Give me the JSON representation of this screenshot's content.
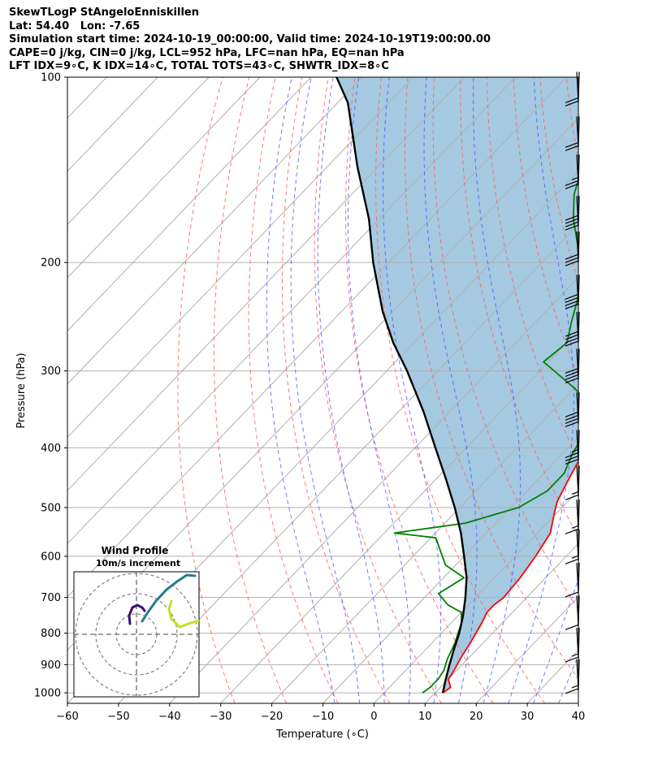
{
  "header": {
    "lines": [
      "SkewTLogP StAngeloEnniskillen",
      "Lat: 54.40   Lon: -7.65",
      "Simulation start time: 2024-10-19_00:00:00, Valid time: 2024-10-19T19:00:00.00",
      "CAPE=0 j/kg, CIN=0 j/kg, LCL=952 hPa, LFC=nan hPa, EQ=nan hPa",
      "LFT IDX=9∘C, K IDX=14∘C, TOTAL TOTS=43∘C, SHWTR_IDX=8∘C"
    ]
  },
  "chart_data": {
    "type": "line",
    "subtype": "skew-T log-P",
    "xlabel": "Temperature (∘C)",
    "ylabel": "Pressure (hPa)",
    "xlim": [
      -60,
      40
    ],
    "ylim": [
      1040,
      100
    ],
    "x_ticks": [
      -60,
      -50,
      -40,
      -30,
      -20,
      -10,
      0,
      10,
      20,
      30,
      40
    ],
    "x_tick_labels": [
      "−60",
      "−50",
      "−40",
      "−30",
      "−20",
      "−10",
      "0",
      "10",
      "20",
      "30",
      "40"
    ],
    "y_ticks": [
      100,
      200,
      300,
      400,
      500,
      600,
      700,
      800,
      900,
      1000
    ],
    "y_tick_labels": [
      "100",
      "200",
      "300",
      "400",
      "500",
      "600",
      "700",
      "800",
      "900",
      "1000"
    ],
    "grid": true,
    "y_scale": "log",
    "series": [
      {
        "role": "temperature",
        "color": "#ff0000",
        "points": [
          [
            11.5,
            1000
          ],
          [
            12,
            980
          ],
          [
            10,
            950
          ],
          [
            9.5,
            920
          ],
          [
            8.5,
            880
          ],
          [
            7.5,
            830
          ],
          [
            6,
            770
          ],
          [
            5,
            740
          ],
          [
            5,
            720
          ],
          [
            5.5,
            700
          ],
          [
            5,
            650
          ],
          [
            4,
            600
          ],
          [
            2.5,
            550
          ],
          [
            -0.5,
            510
          ],
          [
            -2,
            490
          ],
          [
            -3,
            470
          ],
          [
            -4,
            450
          ],
          [
            -5,
            430
          ],
          [
            -6,
            410
          ],
          [
            -7,
            390
          ],
          [
            -8,
            370
          ],
          [
            -10,
            340
          ],
          [
            -13,
            300
          ],
          [
            -17,
            270
          ],
          [
            -21,
            240
          ],
          [
            -25.5,
            210
          ],
          [
            -30,
            190
          ],
          [
            -35.5,
            170
          ],
          [
            -39,
            155
          ],
          [
            -43,
            145
          ],
          [
            -47,
            135
          ],
          [
            -50,
            128
          ],
          [
            -53,
            120
          ],
          [
            -56,
            113
          ],
          [
            -58,
            107
          ],
          [
            -60,
            100
          ]
        ]
      },
      {
        "role": "dewpoint",
        "color": "#008000",
        "points": [
          [
            7.5,
            1000
          ],
          [
            8,
            980
          ],
          [
            8,
            950
          ],
          [
            7.5,
            920
          ],
          [
            6,
            880
          ],
          [
            4.5,
            830
          ],
          [
            2,
            770
          ],
          [
            0,
            740
          ],
          [
            -4,
            720
          ],
          [
            -8,
            690
          ],
          [
            -6,
            650
          ],
          [
            -12,
            620
          ],
          [
            -19,
            560
          ],
          [
            -28,
            550
          ],
          [
            -16,
            530
          ],
          [
            -8.5,
            500
          ],
          [
            -6,
            470
          ],
          [
            -6,
            440
          ],
          [
            -8,
            410
          ],
          [
            -9,
            390
          ],
          [
            -11,
            370
          ],
          [
            -14,
            340
          ],
          [
            -20,
            320
          ],
          [
            -31,
            290
          ],
          [
            -30,
            270
          ],
          [
            -33,
            250
          ],
          [
            -36,
            230
          ],
          [
            -41,
            205
          ],
          [
            -47,
            185
          ],
          [
            -52,
            170
          ],
          [
            -56.5,
            155
          ],
          [
            -60,
            140
          ],
          [
            -62,
            130
          ],
          [
            -65,
            120
          ],
          [
            -68,
            110
          ],
          [
            -71,
            100
          ]
        ]
      },
      {
        "role": "parcel",
        "color": "#000000",
        "points": [
          [
            11.5,
            1000
          ],
          [
            9.5,
            950
          ],
          [
            7.5,
            900
          ],
          [
            5.5,
            850
          ],
          [
            3.5,
            800
          ],
          [
            1,
            750
          ],
          [
            -2,
            700
          ],
          [
            -5.5,
            650
          ],
          [
            -10,
            600
          ],
          [
            -15,
            550
          ],
          [
            -21,
            500
          ],
          [
            -28,
            450
          ],
          [
            -36,
            400
          ],
          [
            -45,
            350
          ],
          [
            -56,
            300
          ],
          [
            -64,
            270
          ],
          [
            -72,
            240
          ],
          [
            -83,
            200
          ],
          [
            -92,
            170
          ],
          [
            -104,
            140
          ],
          [
            -118,
            110
          ],
          [
            -125,
            100
          ]
        ]
      }
    ],
    "wind_barbs": [
      {
        "p": 110,
        "kt": 20
      },
      {
        "p": 130,
        "kt": 20
      },
      {
        "p": 150,
        "kt": 15
      },
      {
        "p": 175,
        "kt": 40
      },
      {
        "p": 200,
        "kt": 30
      },
      {
        "p": 235,
        "kt": 40
      },
      {
        "p": 270,
        "kt": 40
      },
      {
        "p": 310,
        "kt": 40
      },
      {
        "p": 365,
        "kt": 40
      },
      {
        "p": 420,
        "kt": 25
      },
      {
        "p": 480,
        "kt": 5
      },
      {
        "p": 545,
        "kt": 5
      },
      {
        "p": 610,
        "kt": 5
      },
      {
        "p": 690,
        "kt": 10
      },
      {
        "p": 780,
        "kt": 10
      },
      {
        "p": 880,
        "kt": 5
      },
      {
        "p": 990,
        "kt": 5
      }
    ]
  },
  "hodograph": {
    "title": "Wind Profile",
    "subtitle": "10m/s increment"
  }
}
